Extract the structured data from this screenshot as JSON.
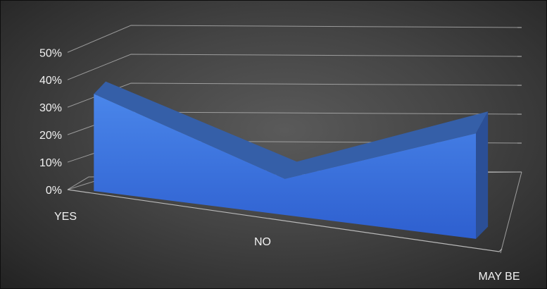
{
  "chart_data": {
    "type": "area",
    "categories": [
      "YES",
      "NO",
      "MAY BE"
    ],
    "values": [
      0.35,
      0.13,
      0.38
    ],
    "ylim": [
      0,
      0.5
    ],
    "yticks": [
      "0%",
      "10%",
      "20%",
      "30%",
      "40%",
      "50%"
    ],
    "grid": true,
    "legend": "none",
    "title": "",
    "xlabel": "",
    "ylabel": "",
    "colors": {
      "front_top": "#4a86ea",
      "front_bottom": "#2e5fcf",
      "top_face": "#355fa8",
      "side_face": "#2b4f96",
      "gridline": "#b9b9b9",
      "text": "#f2f2f2"
    }
  }
}
